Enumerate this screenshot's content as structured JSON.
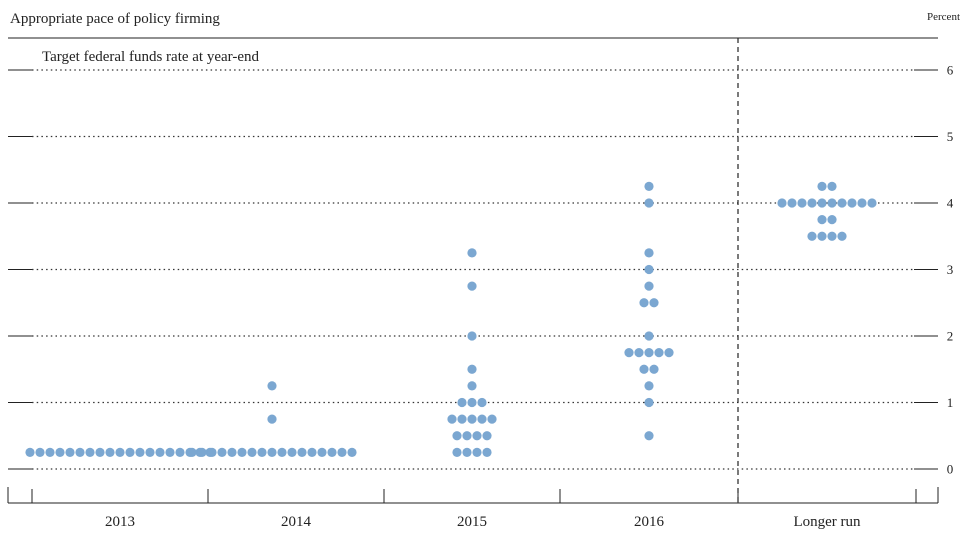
{
  "chart_data": {
    "type": "scatter",
    "title": "Appropriate pace of policy firming",
    "subtitle": "Target federal funds rate at year-end",
    "unit_label": "Percent",
    "categories": [
      "2013",
      "2014",
      "2015",
      "2016",
      "Longer run"
    ],
    "ylim": [
      0,
      6.4
    ],
    "y_ticks": [
      0,
      1,
      2,
      3,
      4,
      5,
      6
    ],
    "grid": "dotted horizontal",
    "separator_before_category": "Longer run",
    "dot_color": "#7ba7d1",
    "series": [
      {
        "category": "2013",
        "points": [
          {
            "y": 0.25,
            "count": 19
          }
        ]
      },
      {
        "category": "2014",
        "points": [
          {
            "y": 0.25,
            "count": 17
          },
          {
            "y": 0.75,
            "count": 1
          },
          {
            "y": 1.25,
            "count": 1
          }
        ]
      },
      {
        "category": "2015",
        "points": [
          {
            "y": 0.25,
            "count": 4
          },
          {
            "y": 0.5,
            "count": 4
          },
          {
            "y": 0.75,
            "count": 5
          },
          {
            "y": 1.0,
            "count": 3
          },
          {
            "y": 1.25,
            "count": 1
          },
          {
            "y": 1.5,
            "count": 1
          },
          {
            "y": 2.0,
            "count": 1
          },
          {
            "y": 2.75,
            "count": 1
          },
          {
            "y": 3.25,
            "count": 1
          }
        ]
      },
      {
        "category": "2016",
        "points": [
          {
            "y": 0.5,
            "count": 1
          },
          {
            "y": 1.0,
            "count": 1
          },
          {
            "y": 1.25,
            "count": 1
          },
          {
            "y": 1.5,
            "count": 2
          },
          {
            "y": 1.75,
            "count": 5
          },
          {
            "y": 2.0,
            "count": 1
          },
          {
            "y": 2.5,
            "count": 2
          },
          {
            "y": 2.75,
            "count": 1
          },
          {
            "y": 3.0,
            "count": 1
          },
          {
            "y": 3.25,
            "count": 1
          },
          {
            "y": 4.0,
            "count": 1
          },
          {
            "y": 4.25,
            "count": 1
          }
        ]
      },
      {
        "category": "Longer run",
        "points": [
          {
            "y": 3.5,
            "count": 4
          },
          {
            "y": 3.75,
            "count": 2
          },
          {
            "y": 4.0,
            "count": 10
          },
          {
            "y": 4.25,
            "count": 2
          }
        ]
      }
    ]
  }
}
